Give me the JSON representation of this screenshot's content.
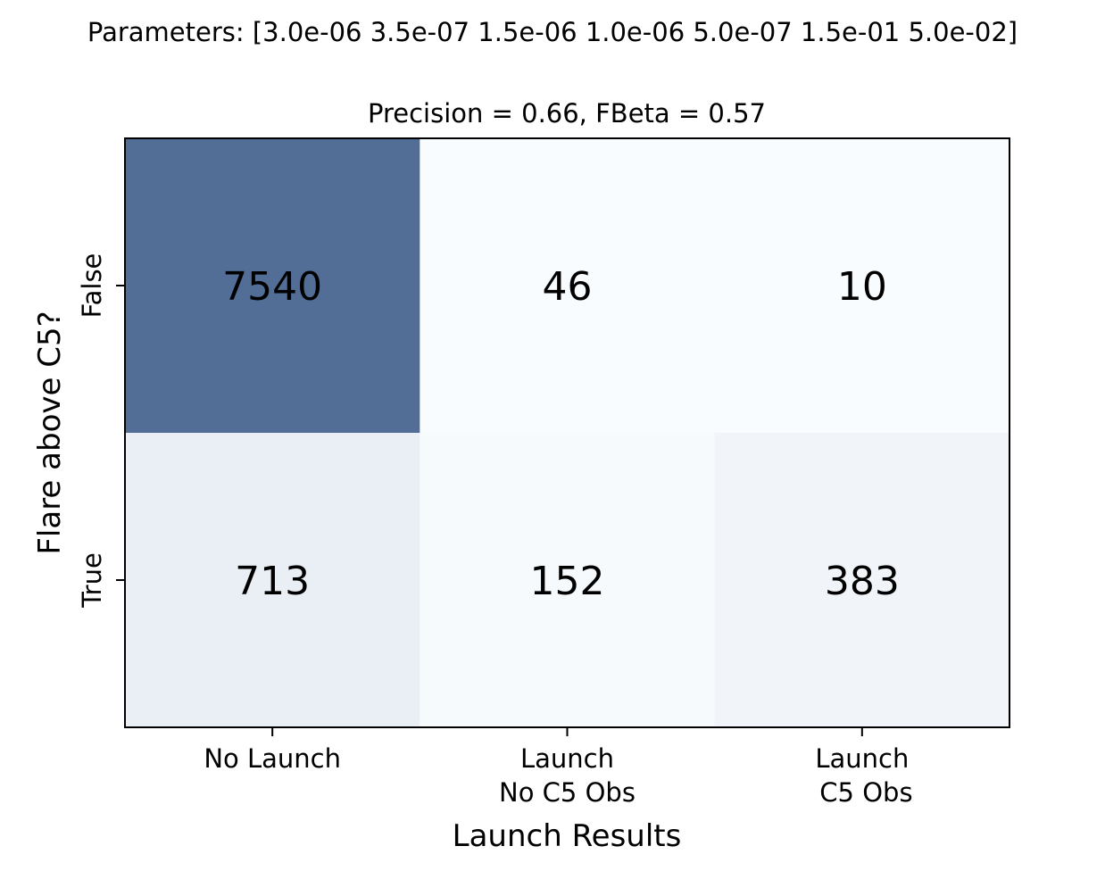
{
  "chart_data": {
    "type": "heatmap",
    "suptitle": "Parameters: [3.0e-06 3.5e-07 1.5e-06 1.0e-06 5.0e-07 1.5e-01 5.0e-02]",
    "title": "Precision = 0.66, FBeta = 0.57",
    "xlabel": "Launch Results",
    "ylabel": "Flare above C5?",
    "x_categories": [
      [
        "No Launch"
      ],
      [
        "Launch",
        "No C5 Obs"
      ],
      [
        "Launch",
        " C5 Obs"
      ]
    ],
    "y_categories": [
      "False",
      "True"
    ],
    "values": [
      [
        7540,
        46,
        10
      ],
      [
        713,
        152,
        383
      ]
    ],
    "colormap": "Blues",
    "color_low": "#f7fbff",
    "color_high": "#08306b",
    "alpha": 0.7,
    "grid": false
  }
}
